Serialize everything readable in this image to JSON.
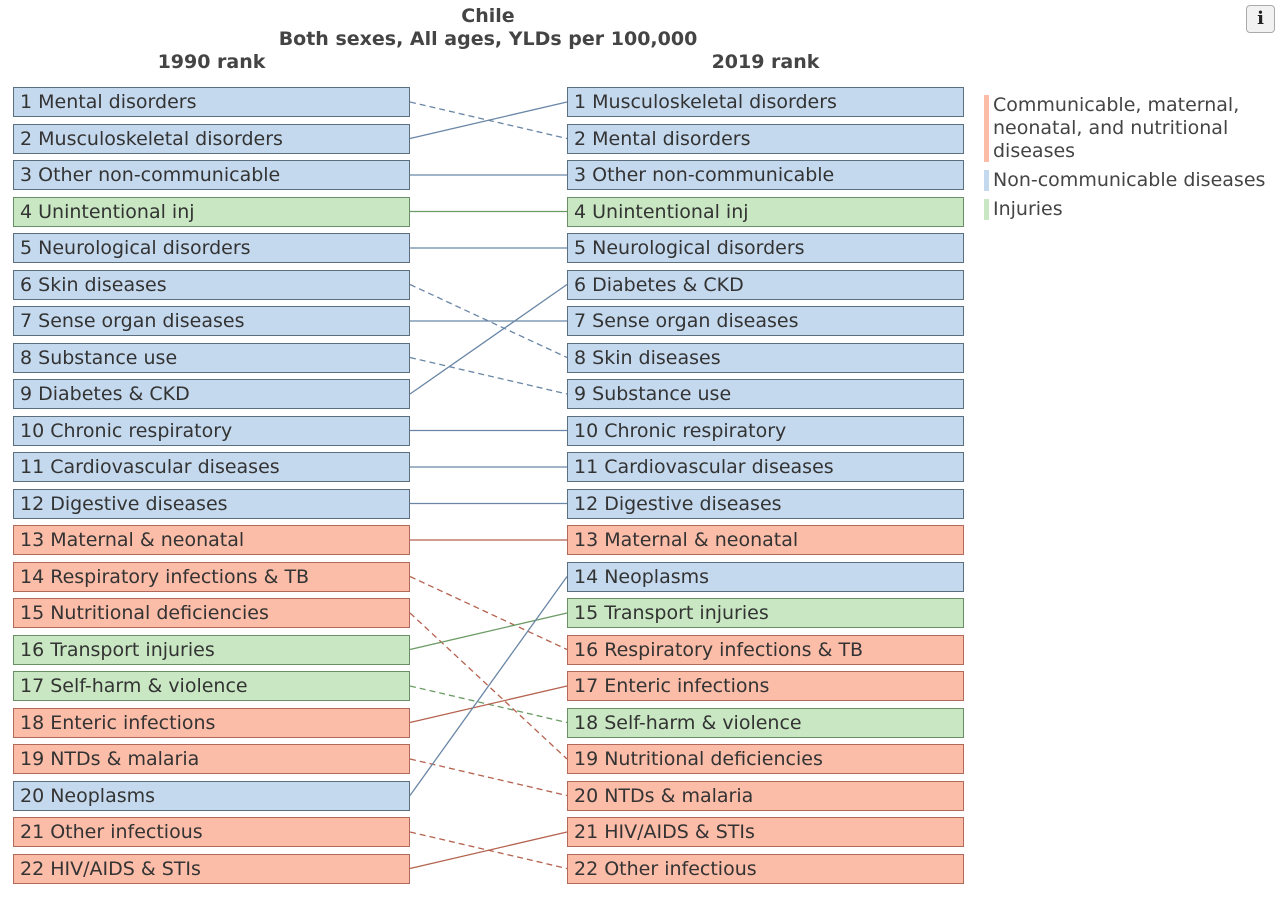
{
  "title_line1": "Chile",
  "title_line2": "Both sexes, All ages, YLDs per 100,000",
  "info_glyph": "i",
  "chart_data": {
    "type": "table",
    "left_header": "1990 rank",
    "right_header": "2019 rank",
    "colors": {
      "cmnn": "#fbbca8",
      "ncd": "#c5d9ee",
      "inj": "#c8e7c2",
      "cmnn_line": "#b5624f",
      "ncd_line": "#6a86a6",
      "inj_line": "#6b9b64"
    },
    "legend": [
      {
        "group": "cmnn",
        "label": "Communicable, maternal, neonatal, and nutritional diseases"
      },
      {
        "group": "ncd",
        "label": "Non-communicable diseases"
      },
      {
        "group": "inj",
        "label": "Injuries"
      }
    ],
    "rank_1990": [
      {
        "rank": 1,
        "cause": "Mental disorders",
        "group": "ncd"
      },
      {
        "rank": 2,
        "cause": "Musculoskeletal disorders",
        "group": "ncd"
      },
      {
        "rank": 3,
        "cause": "Other non-communicable",
        "group": "ncd"
      },
      {
        "rank": 4,
        "cause": "Unintentional inj",
        "group": "inj"
      },
      {
        "rank": 5,
        "cause": "Neurological disorders",
        "group": "ncd"
      },
      {
        "rank": 6,
        "cause": "Skin diseases",
        "group": "ncd"
      },
      {
        "rank": 7,
        "cause": "Sense organ diseases",
        "group": "ncd"
      },
      {
        "rank": 8,
        "cause": "Substance use",
        "group": "ncd"
      },
      {
        "rank": 9,
        "cause": "Diabetes & CKD",
        "group": "ncd"
      },
      {
        "rank": 10,
        "cause": "Chronic respiratory",
        "group": "ncd"
      },
      {
        "rank": 11,
        "cause": "Cardiovascular diseases",
        "group": "ncd"
      },
      {
        "rank": 12,
        "cause": "Digestive diseases",
        "group": "ncd"
      },
      {
        "rank": 13,
        "cause": "Maternal & neonatal",
        "group": "cmnn"
      },
      {
        "rank": 14,
        "cause": "Respiratory infections & TB",
        "group": "cmnn"
      },
      {
        "rank": 15,
        "cause": "Nutritional deficiencies",
        "group": "cmnn"
      },
      {
        "rank": 16,
        "cause": "Transport injuries",
        "group": "inj"
      },
      {
        "rank": 17,
        "cause": "Self-harm & violence",
        "group": "inj"
      },
      {
        "rank": 18,
        "cause": "Enteric infections",
        "group": "cmnn"
      },
      {
        "rank": 19,
        "cause": "NTDs & malaria",
        "group": "cmnn"
      },
      {
        "rank": 20,
        "cause": "Neoplasms",
        "group": "ncd"
      },
      {
        "rank": 21,
        "cause": "Other infectious",
        "group": "cmnn"
      },
      {
        "rank": 22,
        "cause": "HIV/AIDS & STIs",
        "group": "cmnn"
      }
    ],
    "rank_2019": [
      {
        "rank": 1,
        "cause": "Musculoskeletal disorders",
        "group": "ncd"
      },
      {
        "rank": 2,
        "cause": "Mental disorders",
        "group": "ncd"
      },
      {
        "rank": 3,
        "cause": "Other non-communicable",
        "group": "ncd"
      },
      {
        "rank": 4,
        "cause": "Unintentional inj",
        "group": "inj"
      },
      {
        "rank": 5,
        "cause": "Neurological disorders",
        "group": "ncd"
      },
      {
        "rank": 6,
        "cause": "Diabetes & CKD",
        "group": "ncd"
      },
      {
        "rank": 7,
        "cause": "Sense organ diseases",
        "group": "ncd"
      },
      {
        "rank": 8,
        "cause": "Skin diseases",
        "group": "ncd"
      },
      {
        "rank": 9,
        "cause": "Substance use",
        "group": "ncd"
      },
      {
        "rank": 10,
        "cause": "Chronic respiratory",
        "group": "ncd"
      },
      {
        "rank": 11,
        "cause": "Cardiovascular diseases",
        "group": "ncd"
      },
      {
        "rank": 12,
        "cause": "Digestive diseases",
        "group": "ncd"
      },
      {
        "rank": 13,
        "cause": "Maternal & neonatal",
        "group": "cmnn"
      },
      {
        "rank": 14,
        "cause": "Neoplasms",
        "group": "ncd"
      },
      {
        "rank": 15,
        "cause": "Transport injuries",
        "group": "inj"
      },
      {
        "rank": 16,
        "cause": "Respiratory infections & TB",
        "group": "cmnn"
      },
      {
        "rank": 17,
        "cause": "Enteric infections",
        "group": "cmnn"
      },
      {
        "rank": 18,
        "cause": "Self-harm & violence",
        "group": "inj"
      },
      {
        "rank": 19,
        "cause": "Nutritional deficiencies",
        "group": "cmnn"
      },
      {
        "rank": 20,
        "cause": "NTDs & malaria",
        "group": "cmnn"
      },
      {
        "rank": 21,
        "cause": "HIV/AIDS & STIs",
        "group": "cmnn"
      },
      {
        "rank": 22,
        "cause": "Other infectious",
        "group": "cmnn"
      }
    ]
  }
}
